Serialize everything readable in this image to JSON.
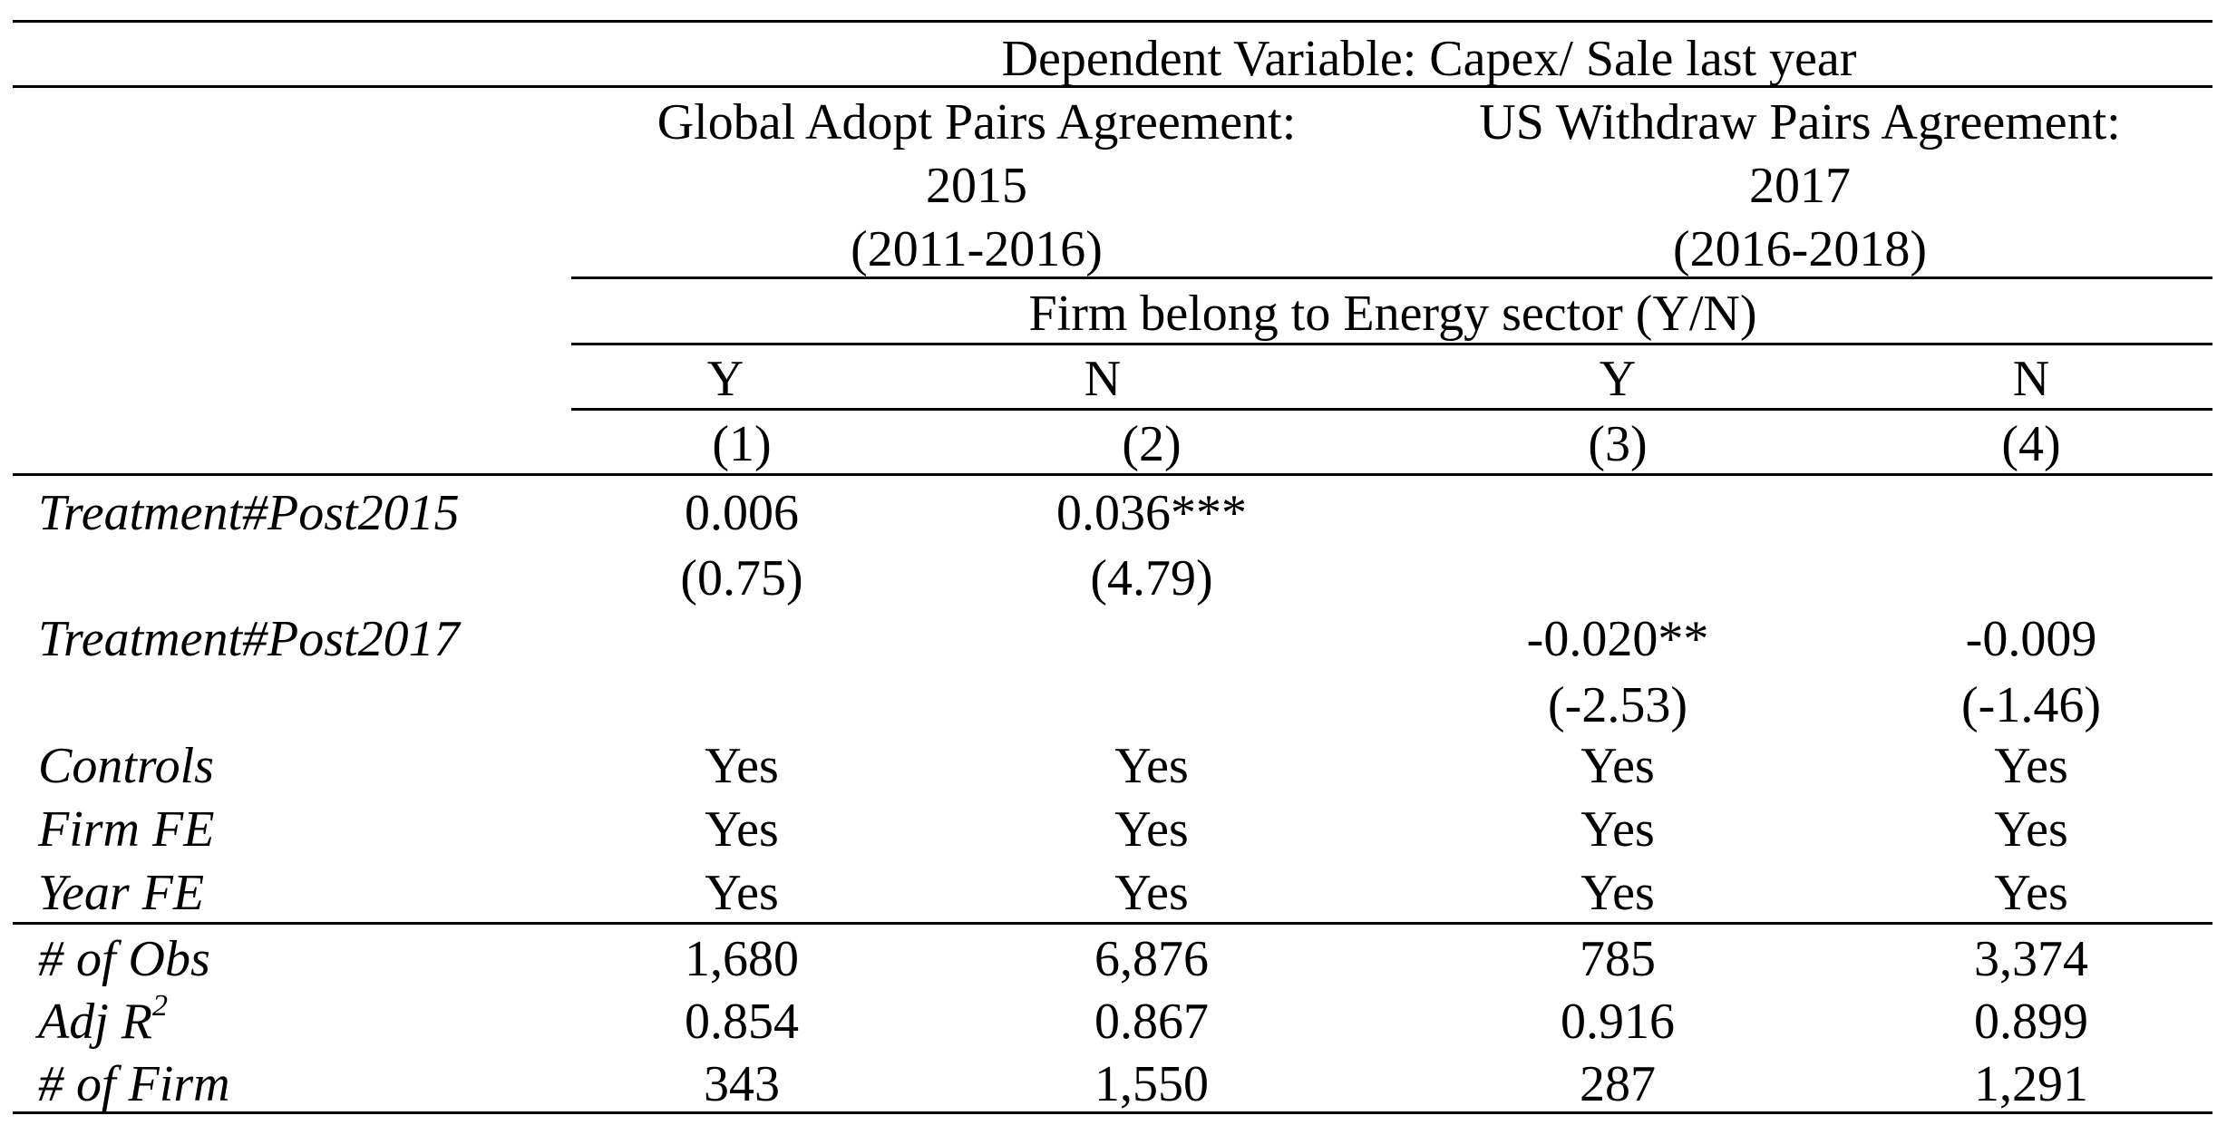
{
  "table": {
    "dependent_variable": "Dependent Variable: Capex/ Sale last year",
    "group1": {
      "line1": "Global Adopt Pairs Agreement:",
      "line2": "2015",
      "line3": "(2011-2016)"
    },
    "group2": {
      "line1": "US Withdraw Pairs Agreement:",
      "line2": "2017",
      "line3": "(2016-2018)"
    },
    "sector_header": "Firm belong to Energy sector (Y/N)",
    "yn": [
      "Y",
      "N",
      "Y",
      "N"
    ],
    "col_numbers": [
      "(1)",
      "(2)",
      "(3)",
      "(4)"
    ],
    "rows": {
      "post2015": {
        "label": "Treatment#Post2015",
        "coef": [
          "0.006",
          "0.036***",
          "",
          ""
        ],
        "tstat": [
          "(0.75)",
          "(4.79)",
          "",
          ""
        ]
      },
      "post2017": {
        "label": "Treatment#Post2017",
        "coef": [
          "",
          "",
          "-0.020**",
          "-0.009"
        ],
        "tstat": [
          "",
          "",
          "(-2.53)",
          "(-1.46)"
        ]
      },
      "controls": {
        "label": "Controls",
        "values": [
          "Yes",
          "Yes",
          "Yes",
          "Yes"
        ]
      },
      "firm_fe": {
        "label": "Firm FE",
        "values": [
          "Yes",
          "Yes",
          "Yes",
          "Yes"
        ]
      },
      "year_fe": {
        "label": "Year FE",
        "values": [
          "Yes",
          "Yes",
          "Yes",
          "Yes"
        ]
      },
      "obs": {
        "label": "# of Obs",
        "values": [
          "1,680",
          "6,876",
          "785",
          "3,374"
        ]
      },
      "adj_r2": {
        "label": "Adj R",
        "label_sup": "2",
        "values": [
          "0.854",
          "0.867",
          "0.916",
          "0.899"
        ]
      },
      "firms": {
        "label": "# of Firm",
        "values": [
          "343",
          "1,550",
          "287",
          "1,291"
        ]
      }
    }
  }
}
